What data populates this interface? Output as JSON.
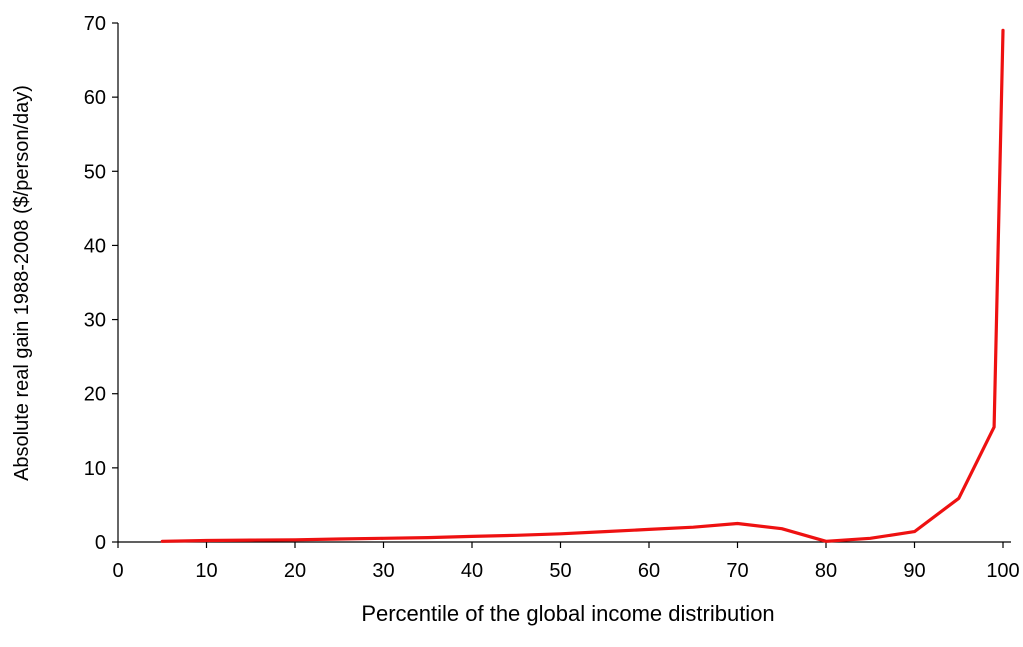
{
  "chart_data": {
    "type": "line",
    "title": "",
    "xlabel": "Percentile of the global income distribution",
    "ylabel": "Absolute real gain 1988-2008 ($/person/day)",
    "xlim": [
      0,
      100
    ],
    "ylim": [
      0,
      70
    ],
    "x_ticks": [
      0,
      10,
      20,
      30,
      40,
      50,
      60,
      70,
      80,
      90,
      100
    ],
    "y_ticks": [
      0,
      10,
      20,
      30,
      40,
      50,
      60,
      70
    ],
    "grid": false,
    "legend": "none",
    "series": [
      {
        "color": "#ee1111",
        "x": [
          5,
          10,
          15,
          20,
          25,
          30,
          35,
          40,
          45,
          50,
          55,
          60,
          65,
          70,
          75,
          80,
          85,
          90,
          95,
          99,
          100
        ],
        "y": [
          0.1,
          0.2,
          0.25,
          0.3,
          0.4,
          0.5,
          0.6,
          0.75,
          0.9,
          1.1,
          1.4,
          1.7,
          2.0,
          2.5,
          1.8,
          0.1,
          0.5,
          1.4,
          5.9,
          15.5,
          69
        ]
      }
    ]
  }
}
